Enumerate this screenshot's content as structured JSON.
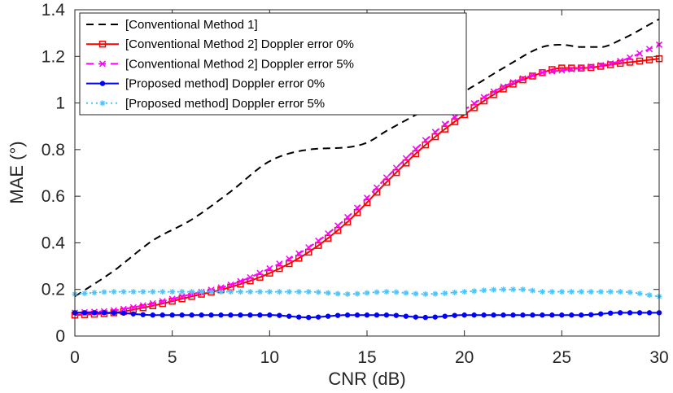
{
  "chart_data": {
    "type": "line",
    "xlabel": "CNR (dB)",
    "ylabel": "MAE (°)",
    "xlim": [
      0,
      30
    ],
    "ylim": [
      0,
      1.4
    ],
    "xticks": [
      "0",
      "5",
      "10",
      "15",
      "20",
      "25",
      "30"
    ],
    "yticks": [
      "0",
      "0.2",
      "0.4",
      "0.6",
      "0.8",
      "1",
      "1.2",
      "1.4"
    ],
    "grid": false,
    "legend_position": "top-left",
    "series": [
      {
        "name": "[Conventional Method 1]",
        "color": "#000000",
        "line": "dashed",
        "marker": "none",
        "x": [
          0,
          2,
          4,
          6,
          8,
          10,
          12,
          14,
          15,
          16,
          18,
          20,
          22,
          24,
          25,
          26,
          27,
          28,
          30
        ],
        "y": [
          0.17,
          0.28,
          0.41,
          0.5,
          0.62,
          0.75,
          0.8,
          0.81,
          0.83,
          0.88,
          0.97,
          1.05,
          1.15,
          1.24,
          1.25,
          1.24,
          1.24,
          1.27,
          1.36
        ]
      },
      {
        "name": "[Conventional Method 2] Doppler error 0%",
        "color": "#ff0000",
        "line": "solid",
        "marker": "square",
        "x": [
          0,
          2,
          4,
          6,
          8,
          10,
          12,
          14,
          16,
          18,
          20,
          22,
          24,
          25,
          26,
          28,
          30
        ],
        "y": [
          0.09,
          0.1,
          0.13,
          0.17,
          0.21,
          0.27,
          0.36,
          0.49,
          0.66,
          0.82,
          0.95,
          1.06,
          1.13,
          1.15,
          1.15,
          1.17,
          1.19
        ]
      },
      {
        "name": "[Conventional Method 2] Doppler error 5%",
        "color": "#ff00ff",
        "line": "dashed",
        "marker": "x",
        "x": [
          0,
          2,
          4,
          6,
          8,
          10,
          12,
          14,
          16,
          18,
          20,
          22,
          24,
          25,
          26,
          28,
          30
        ],
        "y": [
          0.1,
          0.11,
          0.14,
          0.18,
          0.22,
          0.29,
          0.38,
          0.51,
          0.68,
          0.84,
          0.97,
          1.07,
          1.13,
          1.14,
          1.15,
          1.18,
          1.25
        ]
      },
      {
        "name": "[Proposed method] Doppler error 0%",
        "color": "#0000ff",
        "line": "solid",
        "marker": "dot",
        "x": [
          0,
          2,
          4,
          6,
          8,
          10,
          12,
          14,
          16,
          18,
          20,
          22,
          24,
          26,
          28,
          30
        ],
        "y": [
          0.1,
          0.1,
          0.09,
          0.09,
          0.09,
          0.09,
          0.08,
          0.09,
          0.09,
          0.08,
          0.09,
          0.09,
          0.09,
          0.09,
          0.1,
          0.1
        ]
      },
      {
        "name": "[Proposed method] Doppler error 5%",
        "color": "#4fc3f7",
        "line": "dotted",
        "marker": "star",
        "x": [
          0,
          2,
          4,
          6,
          8,
          10,
          12,
          14,
          16,
          18,
          20,
          22,
          23,
          24,
          26,
          28,
          30
        ],
        "y": [
          0.18,
          0.19,
          0.19,
          0.19,
          0.19,
          0.19,
          0.19,
          0.18,
          0.19,
          0.18,
          0.19,
          0.2,
          0.2,
          0.19,
          0.19,
          0.19,
          0.17
        ]
      }
    ]
  }
}
